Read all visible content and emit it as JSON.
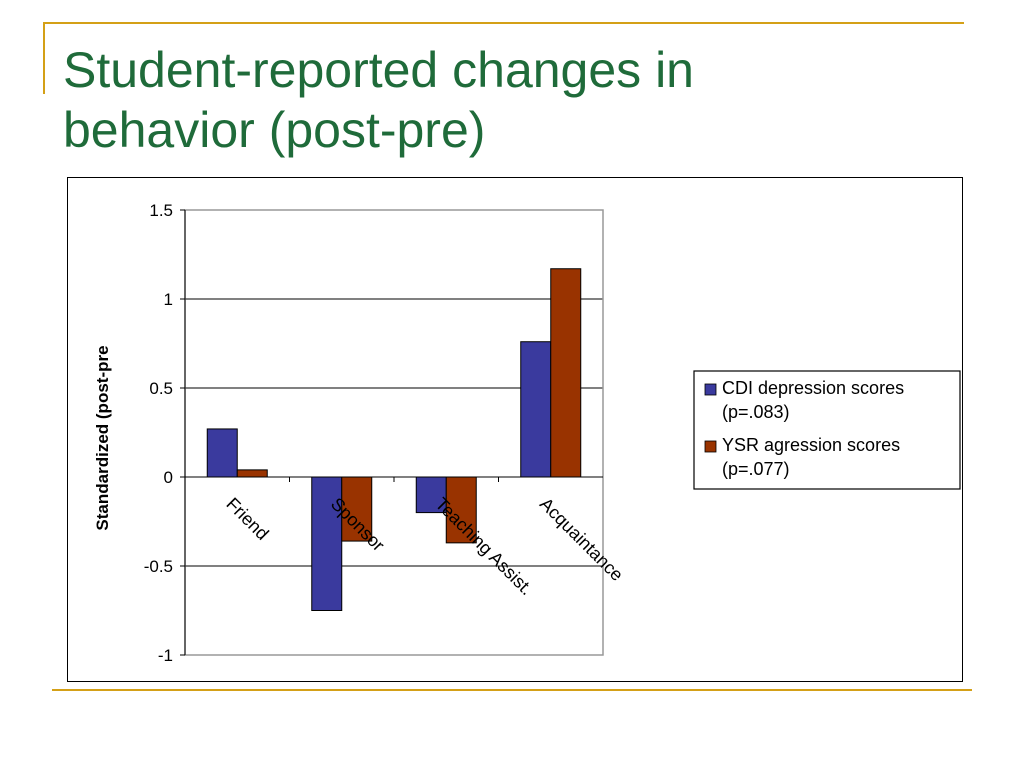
{
  "slide": {
    "title_lines": [
      "Student-reported changes in",
      "behavior (post-pre)"
    ],
    "accent_color": "#d4a017",
    "title_color": "#1f6b3a"
  },
  "chart_data": {
    "type": "bar",
    "categories": [
      "Friend",
      "Sponsor",
      "Teaching Assist.",
      "Acquaintance"
    ],
    "series": [
      {
        "name_lines": [
          "CDI depression scores",
          "(p=.083)"
        ],
        "color": "#3a3a9e",
        "values": [
          0.27,
          -0.75,
          -0.2,
          0.76
        ]
      },
      {
        "name_lines": [
          "YSR agression scores",
          "(p=.077)"
        ],
        "color": "#993300",
        "values": [
          0.04,
          -0.36,
          -0.37,
          1.17
        ]
      }
    ],
    "ylabel": "Standardized (post-pre",
    "xlabel": "",
    "ylim": [
      -1,
      1.5
    ],
    "yticks": [
      -1,
      -0.5,
      0,
      0.5,
      1,
      1.5
    ],
    "ytick_labels": [
      "-1",
      "-0.5",
      "0",
      "0.5",
      "1",
      "1.5"
    ],
    "grid": true,
    "legend_position": "right"
  }
}
